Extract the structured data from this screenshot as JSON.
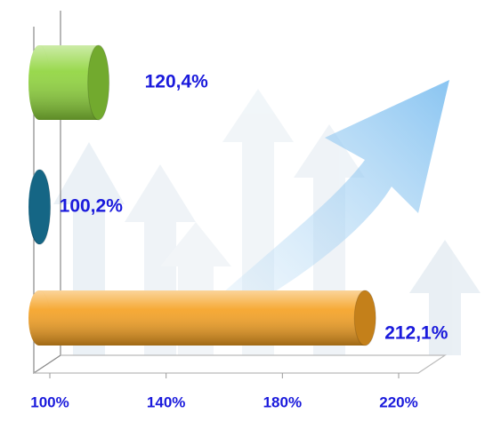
{
  "chart_data": {
    "type": "bar",
    "orientation": "horizontal",
    "categories": [
      null,
      null,
      null
    ],
    "values": [
      120.4,
      100.2,
      212.1
    ],
    "value_labels": [
      "120,4%",
      "100,2%",
      "212,1%"
    ],
    "colors": [
      "#8ed43a",
      "#1a7fa6",
      "#f5a020"
    ],
    "label_color": "#1a1adc",
    "xlim": [
      100,
      220
    ],
    "xticks": [
      {
        "value": 100,
        "label": "100%"
      },
      {
        "value": 140,
        "label": "140%"
      },
      {
        "value": 180,
        "label": "180%"
      },
      {
        "value": 220,
        "label": "220%"
      }
    ]
  }
}
